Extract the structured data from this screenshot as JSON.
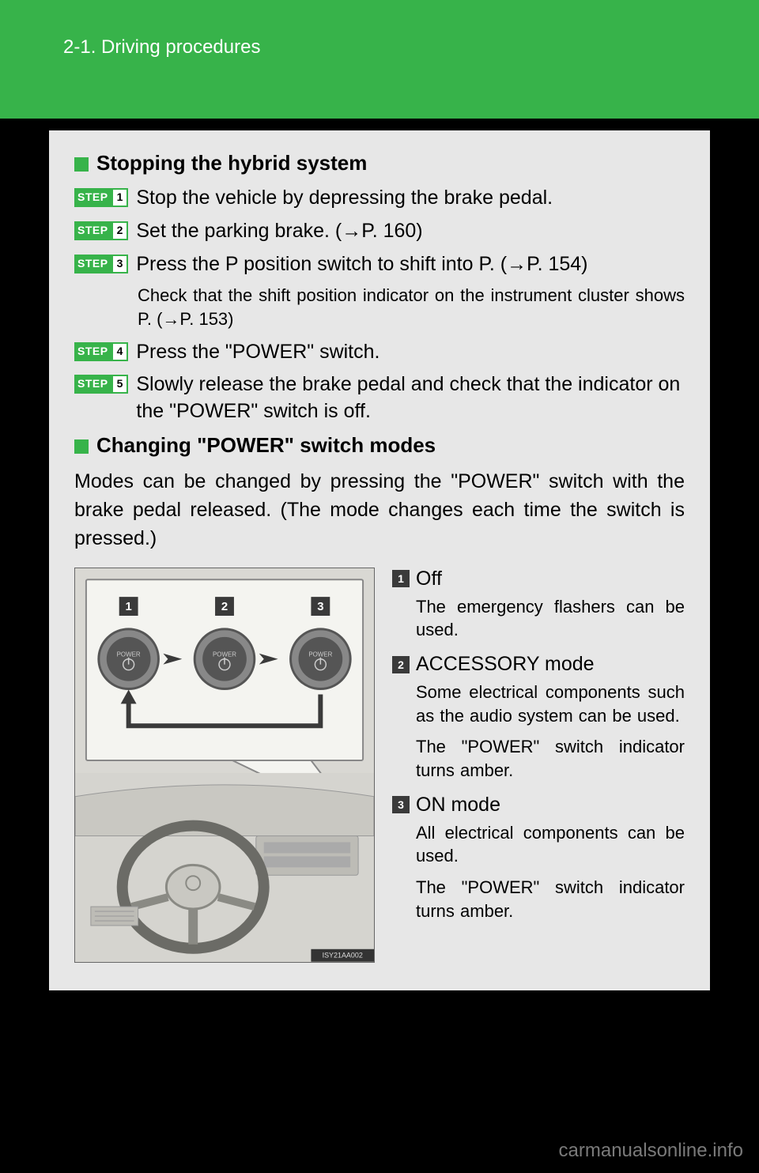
{
  "header": {
    "section_label": "2-1. Driving procedures"
  },
  "colors": {
    "accent_green": "#37b34a",
    "panel_bg": "#e7e7e7",
    "page_bg": "#000000",
    "dark_sq": "#3a3a3a"
  },
  "sec1": {
    "title": "Stopping the hybrid system",
    "steps": [
      {
        "num": "1",
        "text": "Stop the vehicle by depressing the brake pedal."
      },
      {
        "num": "2",
        "text": "Set the parking brake. (→P. 160)"
      },
      {
        "num": "3",
        "text": "Press the P position switch to shift into P. (→P. 154)",
        "note": "Check that the shift position indicator on the instrument cluster shows P. (→P. 153)"
      },
      {
        "num": "4",
        "text": "Press the \"POWER\" switch."
      },
      {
        "num": "5",
        "text": "Slowly release the brake pedal and check that the indicator on the \"POWER\" switch is off."
      }
    ],
    "step_word": "STEP"
  },
  "sec2": {
    "title": "Changing \"POWER\" switch modes",
    "intro": "Modes can be changed by pressing the \"POWER\" switch with the brake pedal released. (The mode changes each time the switch is pressed.)",
    "modes": [
      {
        "num": "1",
        "title": "Off",
        "desc": [
          "The emergency flashers can be used."
        ]
      },
      {
        "num": "2",
        "title": "ACCESSORY mode",
        "desc": [
          "Some electrical components such as the audio system can be used.",
          "The \"POWER\" switch indicator turns amber."
        ]
      },
      {
        "num": "3",
        "title": "ON mode",
        "desc": [
          "All electrical components can be used.",
          "The \"POWER\" switch indicator turns amber."
        ]
      }
    ]
  },
  "diagram": {
    "callouts": [
      "1",
      "2",
      "3"
    ],
    "button_label": "POWER",
    "footer_code": "ISY21AA002"
  },
  "watermark": "carmanualsonline.info"
}
